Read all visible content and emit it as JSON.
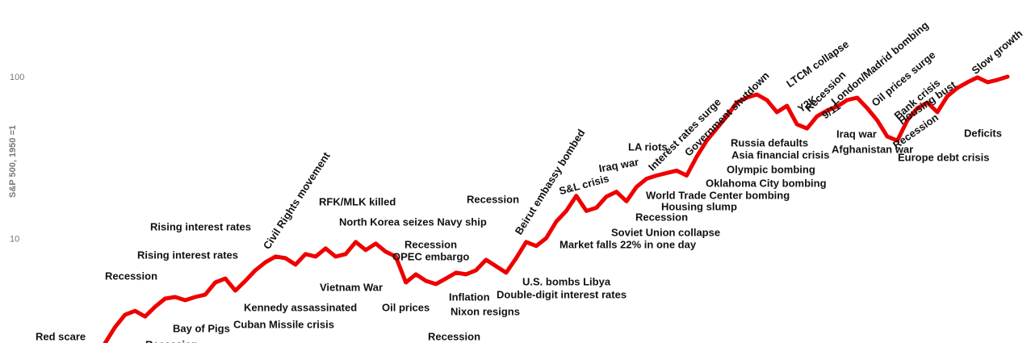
{
  "chart_data": {
    "type": "line",
    "y_label": "S&P 500, 1950 =1",
    "log_scale": true,
    "grid": false,
    "ylim": [
      2.3,
      300
    ],
    "yticks": [
      10,
      100
    ],
    "series": [
      {
        "color": "#ee0000",
        "values": [
          2.29,
          2.88,
          3.43,
          3.63,
          3.35,
          3.85,
          4.32,
          4.42,
          4.22,
          4.42,
          4.57,
          5.43,
          5.75,
          4.84,
          5.56,
          6.46,
          7.24,
          7.85,
          7.67,
          7.0,
          8.13,
          7.85,
          8.81,
          7.85,
          8.13,
          9.66,
          8.61,
          9.44,
          8.41,
          7.85,
          5.43,
          6.1,
          5.56,
          5.31,
          5.75,
          6.24,
          6.1,
          6.46,
          7.5,
          6.84,
          6.24,
          7.67,
          9.66,
          9.12,
          10.2,
          12.9,
          15.0,
          18.6,
          15.0,
          15.7,
          18.4,
          19.7,
          17.2,
          21.1,
          23.7,
          24.8,
          25.7,
          26.6,
          24.8,
          32.4,
          40.7,
          48.4,
          57.5,
          70.0,
          75.0,
          78.5,
          72.4,
          61.0,
          66.8,
          51.3,
          48.4,
          57.5,
          62.4,
          66.1,
          72.4,
          75.0,
          64.6,
          54.3,
          43.2,
          40.7,
          54.3,
          64.6,
          70.0,
          61.0,
          76.7,
          86.1,
          93.3,
          100,
          93.3,
          96.6,
          101
        ]
      }
    ],
    "annotations": [
      "Red scare",
      "Recession",
      "Recession",
      "Bay of Pigs",
      "Rising interest rates",
      "Rising interest rates",
      "Kennedy assassinated",
      "Cuban Missile crisis",
      "Civil Rights movement",
      "RFK/MLK killed",
      "North Korea seizes Navy ship",
      "Vietnam War",
      "Recession",
      "OPEC embargo",
      "Oil prices",
      "Inflation",
      "Nixon resigns",
      "Recession",
      "Double-digit interest rates",
      "Recession",
      "Beirut embassy bombed",
      "U.S. bombs Libya",
      "Market falls 22% in one day",
      "S&L crisis",
      "Iraq war",
      "Soviet Union collapse",
      "Recession",
      "LA riots",
      "Interest rates surge",
      "Housing slump",
      "World Trade Center bombing",
      "Government shutdown",
      "Oklahoma City bombing",
      "Olympic bombing",
      "Asia financial crisis",
      "Russia defaults",
      "LTCM collapse",
      "Y2K",
      "Recession",
      "9/11",
      "London/Madrid bombing",
      "Iraq war",
      "Afghanistan war",
      "Oil prices surge",
      "Bank crisis",
      "Housing bust",
      "Recession",
      "Europe debt crisis",
      "Deficits",
      "Slow growth"
    ]
  }
}
